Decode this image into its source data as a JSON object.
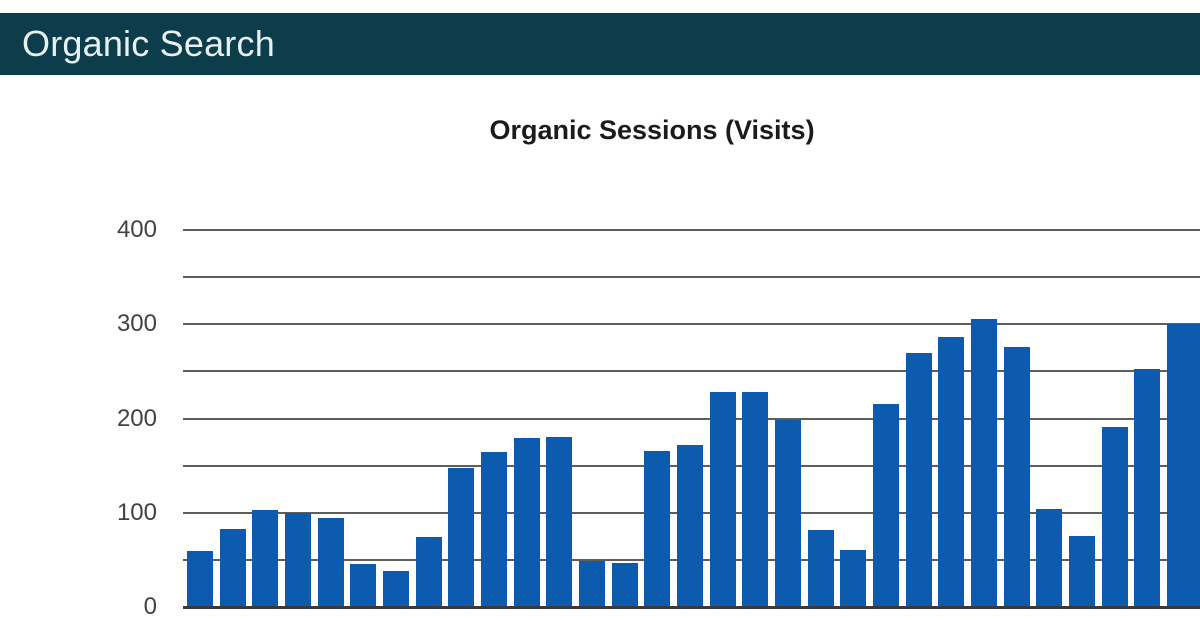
{
  "header": {
    "title": "Organic Search",
    "bg_color": "#0d3c4a",
    "text_color": "#e8f1f2"
  },
  "chart_data": {
    "type": "bar",
    "title": "Organic Sessions (Visits)",
    "values": [
      59,
      83,
      103,
      100,
      94,
      46,
      38,
      74,
      148,
      164,
      179,
      180,
      49,
      47,
      165,
      172,
      228,
      228,
      198,
      82,
      60,
      215,
      270,
      287,
      306,
      276,
      104,
      75,
      191,
      252,
      300
    ],
    "categories": [],
    "x_axis_labels_visible": false,
    "xlabel": "",
    "ylabel": "",
    "ylim": [
      0,
      400
    ],
    "yticks_labeled": [
      0,
      100,
      200,
      300,
      400
    ],
    "gridline_step": 50,
    "grid": true,
    "legend_position": "none",
    "colors": {
      "bar": "#0d5baf",
      "gridline": "#5e5e5e",
      "axis_line": "#3a3a3a",
      "tick_label": "#424242",
      "title": "#1b1b1b"
    }
  }
}
